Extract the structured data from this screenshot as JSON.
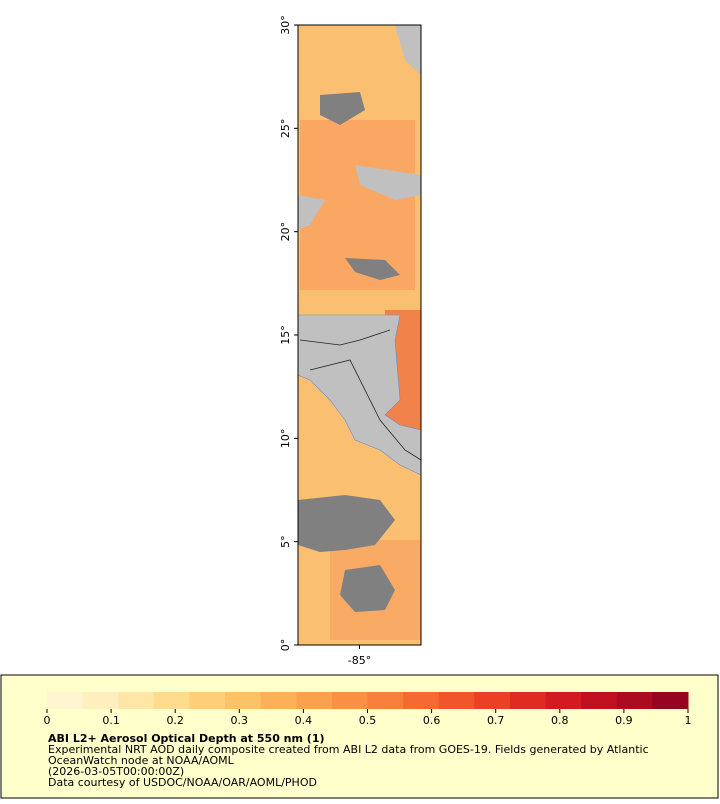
{
  "map": {
    "xlim": [
      -88,
      -82
    ],
    "ylim": [
      0,
      30
    ],
    "xticks": [
      {
        "value": -85,
        "label": "-85°"
      }
    ],
    "yticks": [
      {
        "value": 0,
        "label": "0°"
      },
      {
        "value": 5,
        "label": "5°"
      },
      {
        "value": 10,
        "label": "10°"
      },
      {
        "value": 15,
        "label": "15°"
      },
      {
        "value": 20,
        "label": "20°"
      },
      {
        "value": 25,
        "label": "25°"
      },
      {
        "value": 30,
        "label": "30°"
      }
    ]
  },
  "legend": {
    "title": "ABI L2+ Aerosol Optical Depth at 550 nm (1)",
    "lines": [
      "Experimental NRT AOD daily composite created from ABI L2 data from GOES-19. Fields generated by Atlantic",
      "OceanWatch node at NOAA/AOML",
      "(2026-03-05T00:00:00Z)",
      "Data courtesy of USDOC/NOAA/OAR/AOML/PHOD"
    ],
    "colorbar": {
      "lim": [
        0,
        1
      ],
      "ticks": [
        0,
        0.1,
        0.2,
        0.3,
        0.4,
        0.5,
        0.6,
        0.7,
        0.8,
        0.9,
        1
      ],
      "colors": [
        "#fff5d0",
        "#ffefbe",
        "#ffe6a6",
        "#ffdb8e",
        "#fecf78",
        "#fdc166",
        "#fcb159",
        "#fba14e",
        "#f99044",
        "#f77e3b",
        "#f46a32",
        "#f0552b",
        "#ea4026",
        "#e02b22",
        "#d21a20",
        "#c0101f",
        "#ab0a20",
        "#950420"
      ]
    }
  }
}
